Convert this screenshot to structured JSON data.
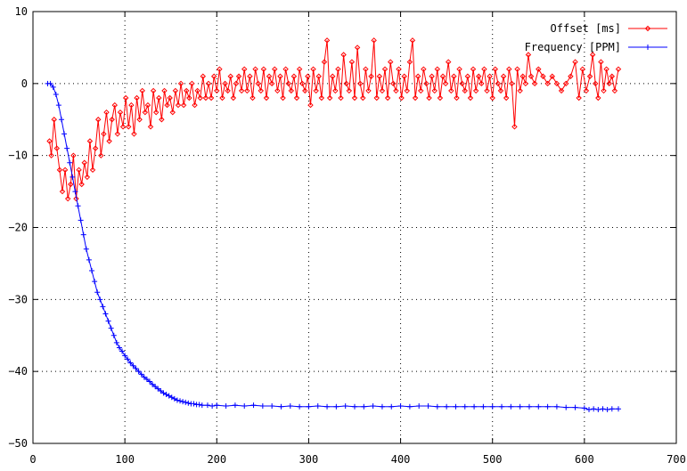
{
  "chart_data": {
    "type": "line",
    "title": "",
    "xlabel": "",
    "ylabel": "",
    "xlim": [
      0,
      700
    ],
    "ylim": [
      -50,
      10
    ],
    "x_ticks": [
      0,
      100,
      200,
      300,
      400,
      500,
      600,
      700
    ],
    "y_ticks": [
      -50,
      -40,
      -30,
      -20,
      -10,
      0,
      10
    ],
    "grid": true,
    "grid_style": "dotted",
    "legend_position": "top-right",
    "series": [
      {
        "name": "Offset [ms]",
        "color": "#ff0000",
        "marker": "diamond",
        "points": [
          [
            18,
            -8
          ],
          [
            20,
            -10
          ],
          [
            23,
            -5
          ],
          [
            26,
            -9
          ],
          [
            29,
            -12
          ],
          [
            32,
            -15
          ],
          [
            35,
            -12
          ],
          [
            38,
            -16
          ],
          [
            41,
            -14
          ],
          [
            44,
            -10
          ],
          [
            47,
            -16
          ],
          [
            50,
            -12
          ],
          [
            53,
            -14
          ],
          [
            56,
            -11
          ],
          [
            59,
            -13
          ],
          [
            62,
            -8
          ],
          [
            65,
            -12
          ],
          [
            68,
            -9
          ],
          [
            71,
            -5
          ],
          [
            74,
            -10
          ],
          [
            77,
            -7
          ],
          [
            80,
            -4
          ],
          [
            83,
            -8
          ],
          [
            86,
            -5
          ],
          [
            89,
            -3
          ],
          [
            92,
            -7
          ],
          [
            95,
            -4
          ],
          [
            98,
            -6
          ],
          [
            101,
            -2
          ],
          [
            104,
            -6
          ],
          [
            107,
            -3
          ],
          [
            110,
            -7
          ],
          [
            113,
            -2
          ],
          [
            116,
            -5
          ],
          [
            119,
            -1
          ],
          [
            122,
            -4
          ],
          [
            125,
            -3
          ],
          [
            128,
            -6
          ],
          [
            131,
            -1
          ],
          [
            134,
            -4
          ],
          [
            137,
            -2
          ],
          [
            140,
            -5
          ],
          [
            143,
            -1
          ],
          [
            146,
            -3
          ],
          [
            149,
            -2
          ],
          [
            152,
            -4
          ],
          [
            155,
            -1
          ],
          [
            158,
            -3
          ],
          [
            161,
            0
          ],
          [
            164,
            -3
          ],
          [
            167,
            -1
          ],
          [
            170,
            -2
          ],
          [
            173,
            0
          ],
          [
            176,
            -3
          ],
          [
            179,
            -1
          ],
          [
            182,
            -2
          ],
          [
            185,
            1
          ],
          [
            188,
            -2
          ],
          [
            191,
            0
          ],
          [
            194,
            -2
          ],
          [
            197,
            1
          ],
          [
            200,
            -1
          ],
          [
            203,
            2
          ],
          [
            206,
            -2
          ],
          [
            209,
            0
          ],
          [
            212,
            -1
          ],
          [
            215,
            1
          ],
          [
            218,
            -2
          ],
          [
            221,
            0
          ],
          [
            224,
            1
          ],
          [
            227,
            -1
          ],
          [
            230,
            2
          ],
          [
            233,
            -1
          ],
          [
            236,
            1
          ],
          [
            239,
            -2
          ],
          [
            242,
            2
          ],
          [
            245,
            0
          ],
          [
            248,
            -1
          ],
          [
            251,
            2
          ],
          [
            254,
            -2
          ],
          [
            257,
            1
          ],
          [
            260,
            0
          ],
          [
            263,
            2
          ],
          [
            266,
            -1
          ],
          [
            269,
            1
          ],
          [
            272,
            -2
          ],
          [
            275,
            2
          ],
          [
            278,
            0
          ],
          [
            281,
            -1
          ],
          [
            284,
            1
          ],
          [
            287,
            -2
          ],
          [
            290,
            2
          ],
          [
            293,
            0
          ],
          [
            296,
            -1
          ],
          [
            299,
            1
          ],
          [
            302,
            -3
          ],
          [
            305,
            2
          ],
          [
            308,
            -1
          ],
          [
            311,
            1
          ],
          [
            314,
            -2
          ],
          [
            317,
            3
          ],
          [
            320,
            6
          ],
          [
            323,
            -2
          ],
          [
            326,
            1
          ],
          [
            329,
            -1
          ],
          [
            332,
            2
          ],
          [
            335,
            -2
          ],
          [
            338,
            4
          ],
          [
            341,
            0
          ],
          [
            344,
            -1
          ],
          [
            347,
            3
          ],
          [
            350,
            -2
          ],
          [
            353,
            5
          ],
          [
            356,
            0
          ],
          [
            359,
            -2
          ],
          [
            362,
            2
          ],
          [
            365,
            -1
          ],
          [
            368,
            1
          ],
          [
            371,
            6
          ],
          [
            374,
            -2
          ],
          [
            377,
            1
          ],
          [
            380,
            -1
          ],
          [
            383,
            2
          ],
          [
            386,
            -2
          ],
          [
            389,
            3
          ],
          [
            392,
            0
          ],
          [
            395,
            -1
          ],
          [
            398,
            2
          ],
          [
            401,
            -2
          ],
          [
            404,
            1
          ],
          [
            407,
            -1
          ],
          [
            410,
            3
          ],
          [
            413,
            6
          ],
          [
            416,
            -2
          ],
          [
            419,
            1
          ],
          [
            422,
            -1
          ],
          [
            425,
            2
          ],
          [
            428,
            0
          ],
          [
            431,
            -2
          ],
          [
            434,
            1
          ],
          [
            437,
            -1
          ],
          [
            440,
            2
          ],
          [
            443,
            -2
          ],
          [
            446,
            1
          ],
          [
            449,
            0
          ],
          [
            452,
            3
          ],
          [
            455,
            -1
          ],
          [
            458,
            1
          ],
          [
            461,
            -2
          ],
          [
            464,
            2
          ],
          [
            467,
            0
          ],
          [
            470,
            -1
          ],
          [
            473,
            1
          ],
          [
            476,
            -2
          ],
          [
            479,
            2
          ],
          [
            482,
            -1
          ],
          [
            485,
            1
          ],
          [
            488,
            0
          ],
          [
            491,
            2
          ],
          [
            494,
            -1
          ],
          [
            497,
            1
          ],
          [
            500,
            -2
          ],
          [
            503,
            2
          ],
          [
            506,
            0
          ],
          [
            509,
            -1
          ],
          [
            512,
            1
          ],
          [
            515,
            -2
          ],
          [
            518,
            2
          ],
          [
            521,
            0
          ],
          [
            524,
            -6
          ],
          [
            527,
            2
          ],
          [
            530,
            -1
          ],
          [
            533,
            1
          ],
          [
            536,
            0
          ],
          [
            539,
            4
          ],
          [
            542,
            1
          ],
          [
            546,
            0
          ],
          [
            550,
            2
          ],
          [
            555,
            1
          ],
          [
            560,
            0
          ],
          [
            565,
            1
          ],
          [
            570,
            0
          ],
          [
            575,
            -1
          ],
          [
            580,
            0
          ],
          [
            585,
            1
          ],
          [
            590,
            3
          ],
          [
            594,
            -2
          ],
          [
            598,
            2
          ],
          [
            602,
            -1
          ],
          [
            606,
            1
          ],
          [
            609,
            4
          ],
          [
            612,
            0
          ],
          [
            615,
            -2
          ],
          [
            618,
            3
          ],
          [
            621,
            -1
          ],
          [
            624,
            2
          ],
          [
            627,
            0
          ],
          [
            630,
            1
          ],
          [
            633,
            -1
          ],
          [
            637,
            2
          ]
        ]
      },
      {
        "name": "Frequency [PPM]",
        "color": "#0000ff",
        "marker": "plus",
        "points": [
          [
            16,
            0
          ],
          [
            19,
            0
          ],
          [
            22,
            -0.5
          ],
          [
            25,
            -1.5
          ],
          [
            28,
            -3
          ],
          [
            31,
            -5
          ],
          [
            34,
            -7
          ],
          [
            37,
            -9
          ],
          [
            40,
            -11
          ],
          [
            43,
            -13
          ],
          [
            46,
            -15
          ],
          [
            49,
            -17
          ],
          [
            52,
            -19
          ],
          [
            55,
            -21
          ],
          [
            58,
            -23
          ],
          [
            61,
            -24.5
          ],
          [
            64,
            -26
          ],
          [
            67,
            -27.5
          ],
          [
            70,
            -29
          ],
          [
            73,
            -30
          ],
          [
            76,
            -31
          ],
          [
            79,
            -32
          ],
          [
            82,
            -33
          ],
          [
            85,
            -34
          ],
          [
            88,
            -35
          ],
          [
            91,
            -36
          ],
          [
            94,
            -36.7
          ],
          [
            97,
            -37.2
          ],
          [
            100,
            -37.8
          ],
          [
            103,
            -38.3
          ],
          [
            106,
            -38.8
          ],
          [
            109,
            -39.2
          ],
          [
            112,
            -39.6
          ],
          [
            115,
            -40
          ],
          [
            118,
            -40.4
          ],
          [
            121,
            -40.8
          ],
          [
            124,
            -41.1
          ],
          [
            127,
            -41.4
          ],
          [
            130,
            -41.8
          ],
          [
            133,
            -42.1
          ],
          [
            136,
            -42.4
          ],
          [
            139,
            -42.7
          ],
          [
            142,
            -43
          ],
          [
            145,
            -43.2
          ],
          [
            148,
            -43.4
          ],
          [
            151,
            -43.6
          ],
          [
            154,
            -43.8
          ],
          [
            157,
            -44
          ],
          [
            160,
            -44.1
          ],
          [
            163,
            -44.2
          ],
          [
            166,
            -44.3
          ],
          [
            169,
            -44.4
          ],
          [
            172,
            -44.5
          ],
          [
            175,
            -44.5
          ],
          [
            178,
            -44.6
          ],
          [
            181,
            -44.6
          ],
          [
            184,
            -44.7
          ],
          [
            190,
            -44.7
          ],
          [
            195,
            -44.8
          ],
          [
            200,
            -44.7
          ],
          [
            210,
            -44.8
          ],
          [
            220,
            -44.7
          ],
          [
            230,
            -44.8
          ],
          [
            240,
            -44.7
          ],
          [
            250,
            -44.8
          ],
          [
            260,
            -44.8
          ],
          [
            270,
            -44.9
          ],
          [
            280,
            -44.8
          ],
          [
            290,
            -44.9
          ],
          [
            300,
            -44.9
          ],
          [
            310,
            -44.8
          ],
          [
            320,
            -44.9
          ],
          [
            330,
            -44.9
          ],
          [
            340,
            -44.8
          ],
          [
            350,
            -44.9
          ],
          [
            360,
            -44.9
          ],
          [
            370,
            -44.8
          ],
          [
            380,
            -44.9
          ],
          [
            390,
            -44.9
          ],
          [
            400,
            -44.8
          ],
          [
            410,
            -44.9
          ],
          [
            420,
            -44.8
          ],
          [
            430,
            -44.8
          ],
          [
            440,
            -44.9
          ],
          [
            450,
            -44.9
          ],
          [
            460,
            -44.9
          ],
          [
            470,
            -44.9
          ],
          [
            480,
            -44.9
          ],
          [
            490,
            -44.9
          ],
          [
            500,
            -44.9
          ],
          [
            510,
            -44.9
          ],
          [
            520,
            -44.9
          ],
          [
            530,
            -44.9
          ],
          [
            540,
            -44.9
          ],
          [
            550,
            -44.9
          ],
          [
            560,
            -44.9
          ],
          [
            570,
            -44.9
          ],
          [
            580,
            -45
          ],
          [
            590,
            -45
          ],
          [
            600,
            -45.1
          ],
          [
            605,
            -45.3
          ],
          [
            610,
            -45.2
          ],
          [
            615,
            -45.3
          ],
          [
            620,
            -45.2
          ],
          [
            625,
            -45.3
          ],
          [
            630,
            -45.2
          ],
          [
            637,
            -45.2
          ]
        ]
      }
    ]
  }
}
